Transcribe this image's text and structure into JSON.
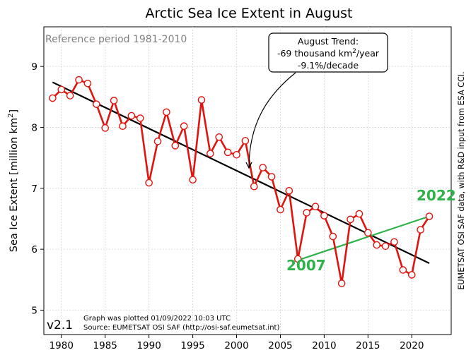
{
  "chart_data": {
    "type": "line",
    "title": "Arctic Sea Ice Extent in August",
    "ylabel_main": "Sea Ice Extent [million km",
    "ylabel_sup": "2",
    "ylabel_close": "]",
    "xlim": [
      1978,
      2024.5
    ],
    "ylim": [
      4.6,
      9.65
    ],
    "xticks": [
      1980,
      1985,
      1990,
      1995,
      2000,
      2005,
      2010,
      2015,
      2020
    ],
    "yticks": [
      5,
      6,
      7,
      8,
      9
    ],
    "grid": true,
    "series": [
      {
        "name": "",
        "color": "#e0140f",
        "x": [
          1979,
          1980,
          1981,
          1982,
          1983,
          1984,
          1985,
          1986,
          1987,
          1988,
          1989,
          1990,
          1991,
          1992,
          1993,
          1994,
          1995,
          1996,
          1997,
          1998,
          1999,
          2000,
          2001,
          2002,
          2003,
          2004,
          2005,
          2006,
          2007,
          2008,
          2009,
          2010,
          2011,
          2012,
          2013,
          2014,
          2015,
          2016,
          2017,
          2018,
          2019,
          2020,
          2021,
          2022
        ],
        "y": [
          8.48,
          8.62,
          8.52,
          8.78,
          8.72,
          8.38,
          7.99,
          8.44,
          8.02,
          8.19,
          8.15,
          7.09,
          7.77,
          8.25,
          7.7,
          8.02,
          7.14,
          8.45,
          7.57,
          7.84,
          7.59,
          7.55,
          7.78,
          7.03,
          7.34,
          7.19,
          6.65,
          6.96,
          5.84,
          6.6,
          6.7,
          6.55,
          6.21,
          5.44,
          6.49,
          6.58,
          6.27,
          6.07,
          6.05,
          6.12,
          5.66,
          5.58,
          6.32,
          6.54
        ]
      }
    ],
    "trend_line": {
      "x": [
        1979,
        2022
      ],
      "y": [
        8.74,
        5.77
      ],
      "color": "#000000"
    },
    "green_line": {
      "x": [
        2007,
        2022
      ],
      "y": [
        5.82,
        6.54
      ],
      "color": "#2db34a"
    },
    "reference_text": "Reference period 1981-2010",
    "trend_box": {
      "line1": "August Trend:",
      "line2_main": "-69 thousand km",
      "line2_sup": "2",
      "line2_end": "/year",
      "line3": "-9.1%/decade"
    },
    "label_2007": "2007",
    "label_2022": "2022",
    "version": "v2.1",
    "footer_line1": "Graph was plotted 01/09/2022 10:03 UTC",
    "footer_line2": "Source: EUMETSAT OSI SAF (http://osi-saf.eumetsat.int)",
    "side_note": "EUMETSAT OSI SAF data, with R&D input from ESA CCI."
  }
}
